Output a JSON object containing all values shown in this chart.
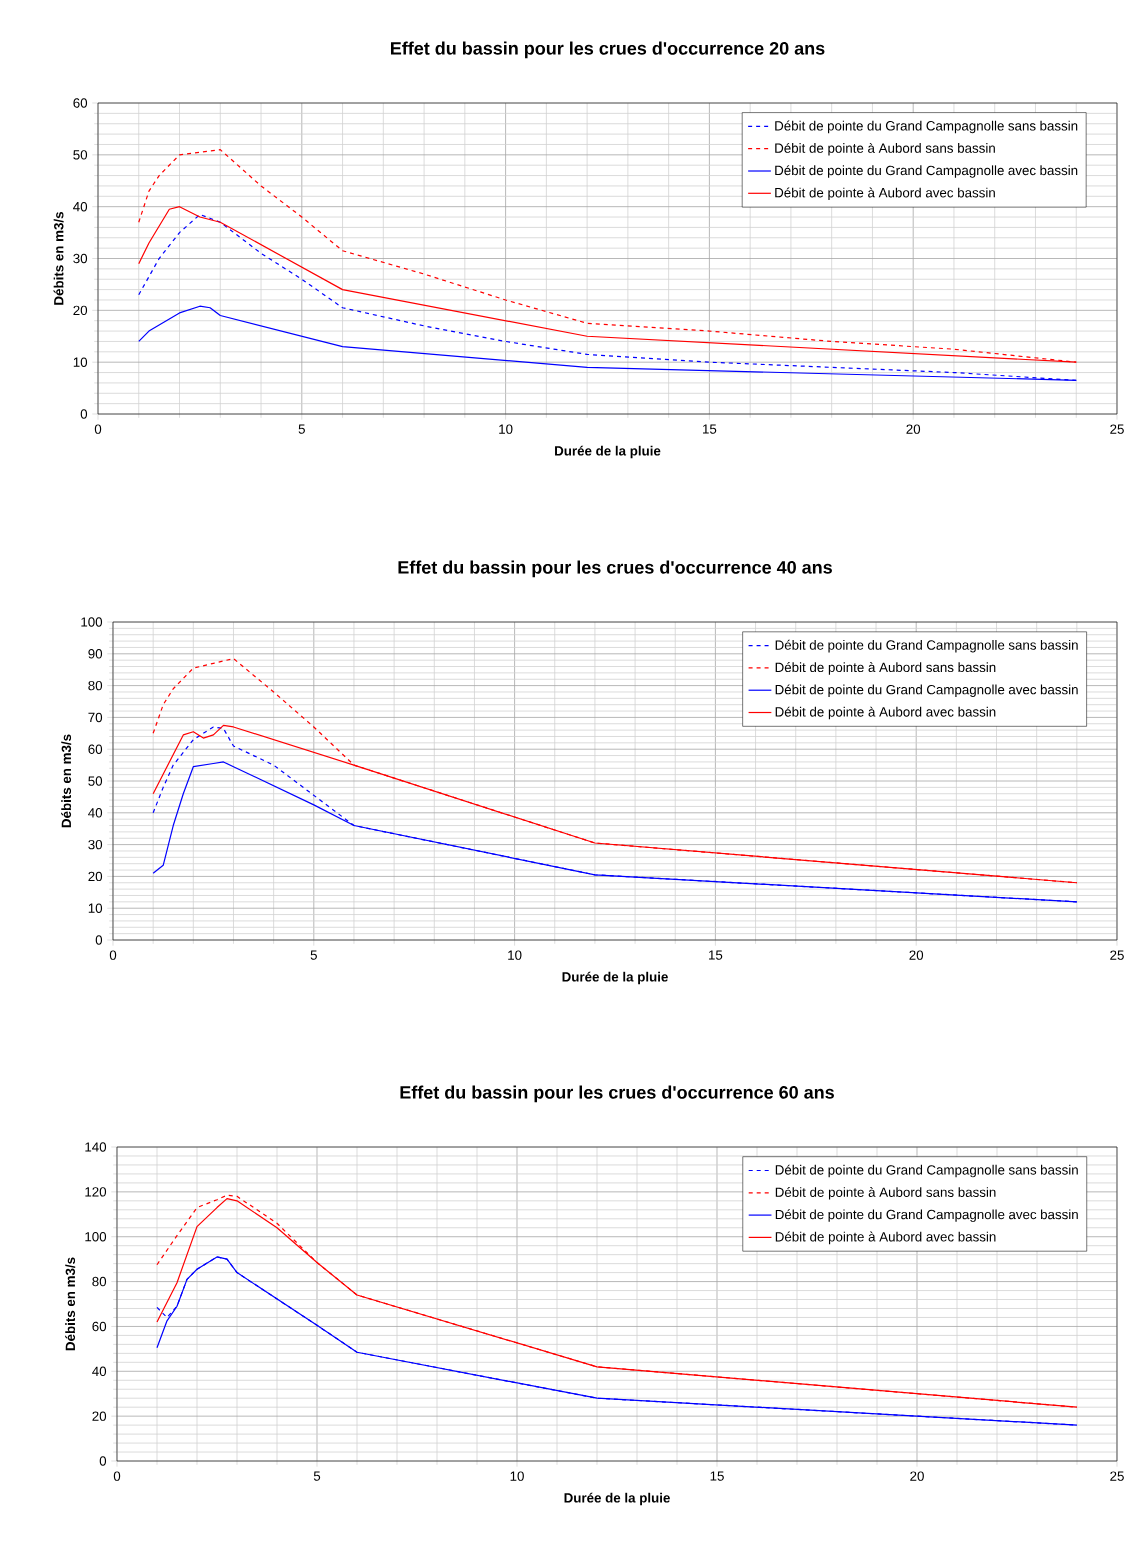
{
  "chart_data": [
    {
      "type": "line",
      "title": "Effet du bassin pour les crues d'occurrence 20 ans",
      "xlabel": "Durée de la pluie",
      "ylabel": "Débits en m3/s",
      "xlim": [
        0,
        25
      ],
      "xticks": [
        0,
        5,
        10,
        15,
        20,
        25
      ],
      "ylim": [
        0,
        60
      ],
      "yticks": [
        0,
        10,
        20,
        30,
        40,
        50,
        60
      ],
      "grid": true,
      "legend": "top right",
      "series": [
        {
          "name": "Débit de pointe du Grand Campagnolle sans bassin",
          "color": "#0000ff",
          "line_style": "dashed",
          "x": [
            1,
            1.5,
            2,
            2.5,
            3,
            4,
            5,
            6,
            8,
            10,
            12,
            15,
            18,
            21,
            24
          ],
          "values": [
            23,
            30,
            35,
            38.5,
            37,
            31,
            26,
            20.5,
            17,
            14,
            11.5,
            10,
            9,
            8,
            6.5
          ]
        },
        {
          "name": "Débit de pointe à Aubord sans bassin",
          "color": "#ff0000",
          "line_style": "dashed",
          "x": [
            1,
            1.25,
            1.5,
            2,
            3,
            4,
            5,
            6,
            8,
            10,
            12,
            15,
            18,
            21,
            24
          ],
          "values": [
            37,
            43,
            46,
            50,
            51,
            44,
            38,
            31.5,
            27,
            22,
            17.5,
            16,
            14,
            12.5,
            10
          ]
        },
        {
          "name": "Débit de pointe du Grand Campagnolle avec bassin",
          "color": "#0000ff",
          "line_style": "solid",
          "x": [
            1,
            1.25,
            2,
            2.5,
            2.75,
            3,
            6,
            12,
            24
          ],
          "values": [
            14,
            16,
            19.5,
            20.8,
            20.5,
            19,
            13,
            9,
            6.5
          ]
        },
        {
          "name": "Débit de pointe à Aubord avec bassin",
          "color": "#ff0000",
          "line_style": "solid",
          "x": [
            1,
            1.25,
            1.75,
            2,
            2.5,
            3,
            6,
            12,
            24
          ],
          "values": [
            29,
            33,
            39.5,
            40,
            38,
            37,
            24,
            15,
            10
          ]
        }
      ]
    },
    {
      "type": "line",
      "title": "Effet du bassin pour les crues d'occurrence 40 ans",
      "xlabel": "Durée de la pluie",
      "ylabel": "Débits en m3/s",
      "xlim": [
        0,
        25
      ],
      "xticks": [
        0,
        5,
        10,
        15,
        20,
        25
      ],
      "ylim": [
        0,
        100
      ],
      "yticks": [
        0,
        10,
        20,
        30,
        40,
        50,
        60,
        70,
        80,
        90,
        100
      ],
      "grid": true,
      "legend": "top right",
      "series": [
        {
          "name": "Débit de pointe du Grand Campagnolle sans bassin",
          "color": "#0000ff",
          "line_style": "dashed",
          "x": [
            1,
            1.25,
            1.5,
            2,
            2.5,
            2.75,
            3,
            4,
            5,
            6,
            12,
            24
          ],
          "values": [
            40,
            48,
            55,
            63,
            67,
            66.5,
            61,
            55,
            45.5,
            36,
            20.5,
            12
          ]
        },
        {
          "name": "Débit de pointe à Aubord sans bassin",
          "color": "#ff0000",
          "line_style": "dashed",
          "x": [
            1,
            1.25,
            1.5,
            2,
            2.5,
            3,
            4,
            5,
            6,
            12,
            24
          ],
          "values": [
            65,
            74,
            79,
            85.5,
            87,
            88.5,
            78,
            67,
            55,
            30.5,
            18
          ]
        },
        {
          "name": "Débit de pointe du Grand Campagnolle avec bassin",
          "color": "#0000ff",
          "line_style": "solid",
          "x": [
            1,
            1.25,
            1.5,
            1.75,
            2,
            2.5,
            2.75,
            3,
            5,
            6,
            12,
            24
          ],
          "values": [
            21,
            23.5,
            36,
            46,
            54.5,
            55.5,
            56,
            54.5,
            42.5,
            36,
            20.5,
            12
          ]
        },
        {
          "name": "Débit de pointe à Aubord avec bassin",
          "color": "#ff0000",
          "line_style": "solid",
          "x": [
            1,
            1.75,
            2,
            2.25,
            2.5,
            2.75,
            3,
            5,
            6,
            12,
            24
          ],
          "values": [
            46,
            64.5,
            65.5,
            63.5,
            64.5,
            67.5,
            67,
            59,
            55,
            30.5,
            18
          ]
        }
      ]
    },
    {
      "type": "line",
      "title": "Effet du bassin pour les crues d'occurrence 60 ans",
      "xlabel": "Durée de la pluie",
      "ylabel": "Débits en m3/s",
      "xlim": [
        0,
        25
      ],
      "xticks": [
        0,
        5,
        10,
        15,
        20,
        25
      ],
      "ylim": [
        0,
        140
      ],
      "yticks": [
        0,
        20,
        40,
        60,
        80,
        100,
        120,
        140
      ],
      "grid": true,
      "legend": "top right",
      "series": [
        {
          "name": "Débit de pointe du Grand Campagnolle sans bassin",
          "color": "#0000ff",
          "line_style": "dashed",
          "x": [
            1,
            1.25,
            1.5,
            1.75,
            2,
            2.5,
            2.75,
            3,
            5,
            6,
            12,
            24
          ],
          "values": [
            68.5,
            64,
            69,
            81,
            85.5,
            91,
            90,
            84,
            60.5,
            48.5,
            28,
            16
          ]
        },
        {
          "name": "Débit de pointe à Aubord sans bassin",
          "color": "#ff0000",
          "line_style": "dashed",
          "x": [
            1,
            1.5,
            2,
            2.5,
            2.75,
            3,
            4,
            5,
            6,
            12,
            24
          ],
          "values": [
            87.5,
            100.5,
            113,
            116.5,
            118.5,
            118,
            106,
            88.5,
            74,
            42,
            24
          ]
        },
        {
          "name": "Débit de pointe du Grand Campagnolle avec bassin",
          "color": "#0000ff",
          "line_style": "solid",
          "x": [
            1,
            1.25,
            1.5,
            1.75,
            2,
            2.5,
            2.75,
            3,
            5,
            6,
            12,
            24
          ],
          "values": [
            50.5,
            62.5,
            69,
            81,
            85.5,
            91,
            90,
            84,
            60.5,
            48.5,
            28,
            16
          ]
        },
        {
          "name": "Débit de pointe à Aubord avec bassin",
          "color": "#ff0000",
          "line_style": "solid",
          "x": [
            1,
            1.5,
            2,
            2.5,
            2.75,
            3,
            4,
            5,
            6,
            12,
            24
          ],
          "values": [
            62,
            79.5,
            104.5,
            113,
            117,
            116,
            104,
            88.5,
            74,
            42,
            24
          ]
        }
      ]
    }
  ]
}
